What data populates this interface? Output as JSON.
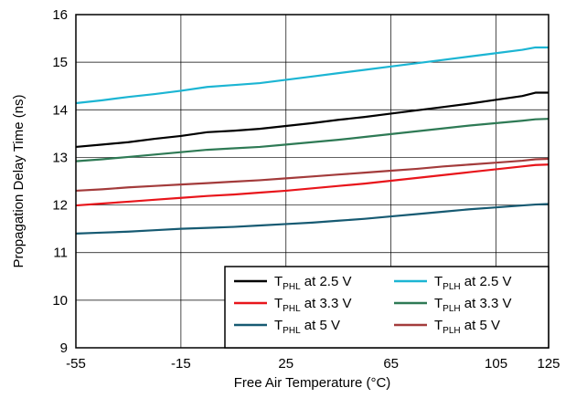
{
  "chart_data": {
    "type": "line",
    "xlabel": "Free Air Temperature (°C)",
    "ylabel": "Propagation Delay Time (ns)",
    "xlim": [
      -55,
      125
    ],
    "ylim": [
      9,
      16
    ],
    "x_ticks": [
      -55,
      -15,
      25,
      65,
      105,
      125
    ],
    "x_tick_labels": [
      "-55",
      "-15",
      "25",
      "65",
      "105",
      "125"
    ],
    "y_ticks": [
      9,
      10,
      11,
      12,
      13,
      14,
      15,
      16
    ],
    "y_tick_labels": [
      "9",
      "10",
      "11",
      "12",
      "13",
      "14",
      "15",
      "16"
    ],
    "grid": true,
    "legend_position": "bottom-right",
    "x": [
      -55,
      -45,
      -35,
      -25,
      -15,
      -5,
      5,
      15,
      25,
      35,
      45,
      55,
      65,
      75,
      85,
      95,
      105,
      115,
      120,
      125
    ],
    "series": [
      {
        "name": "TPHL at 2.5 V",
        "label_main": "T",
        "label_sub": "PHL",
        "label_rest": " at 2.5 V",
        "color": "#000000",
        "values": [
          13.22,
          13.27,
          13.32,
          13.39,
          13.45,
          13.53,
          13.56,
          13.6,
          13.66,
          13.72,
          13.79,
          13.85,
          13.92,
          13.99,
          14.06,
          14.13,
          14.21,
          14.29,
          14.36,
          14.36
        ]
      },
      {
        "name": "TPHL at 3.3 V",
        "label_main": "T",
        "label_sub": "PHL",
        "label_rest": " at 3.3 V",
        "color": "#e8151b",
        "values": [
          11.99,
          12.03,
          12.07,
          12.11,
          12.15,
          12.19,
          12.22,
          12.26,
          12.3,
          12.35,
          12.4,
          12.45,
          12.51,
          12.57,
          12.63,
          12.69,
          12.75,
          12.81,
          12.84,
          12.85
        ]
      },
      {
        "name": "TPHL at 5 V",
        "label_main": "T",
        "label_sub": "PHL",
        "label_rest": " at 5 V",
        "color": "#165a72",
        "values": [
          11.4,
          11.42,
          11.44,
          11.47,
          11.5,
          11.52,
          11.54,
          11.57,
          11.6,
          11.63,
          11.67,
          11.71,
          11.76,
          11.81,
          11.86,
          11.91,
          11.95,
          11.99,
          12.01,
          12.02
        ]
      },
      {
        "name": "TPLH at 2.5 V",
        "label_main": "T",
        "label_sub": "PLH",
        "label_rest": " at 2.5 V",
        "color": "#1cb5d3",
        "values": [
          14.14,
          14.2,
          14.27,
          14.33,
          14.4,
          14.48,
          14.52,
          14.56,
          14.63,
          14.7,
          14.77,
          14.84,
          14.91,
          14.98,
          15.05,
          15.12,
          15.19,
          15.26,
          15.31,
          15.31
        ]
      },
      {
        "name": "TPLH at 3.3 V",
        "label_main": "T",
        "label_sub": "PLH",
        "label_rest": " at 3.3 V",
        "color": "#2e7a55",
        "values": [
          12.92,
          12.96,
          13.01,
          13.06,
          13.11,
          13.16,
          13.19,
          13.22,
          13.27,
          13.32,
          13.37,
          13.43,
          13.49,
          13.55,
          13.61,
          13.67,
          13.72,
          13.77,
          13.8,
          13.81
        ]
      },
      {
        "name": "TPLH at 5 V",
        "label_main": "T",
        "label_sub": "PLH",
        "label_rest": " at 5 V",
        "color": "#a33b3b",
        "values": [
          12.3,
          12.33,
          12.37,
          12.4,
          12.43,
          12.46,
          12.49,
          12.52,
          12.56,
          12.6,
          12.64,
          12.68,
          12.72,
          12.76,
          12.81,
          12.85,
          12.89,
          12.93,
          12.96,
          12.97
        ]
      }
    ],
    "legend_order": [
      0,
      3,
      1,
      4,
      2,
      5
    ]
  }
}
